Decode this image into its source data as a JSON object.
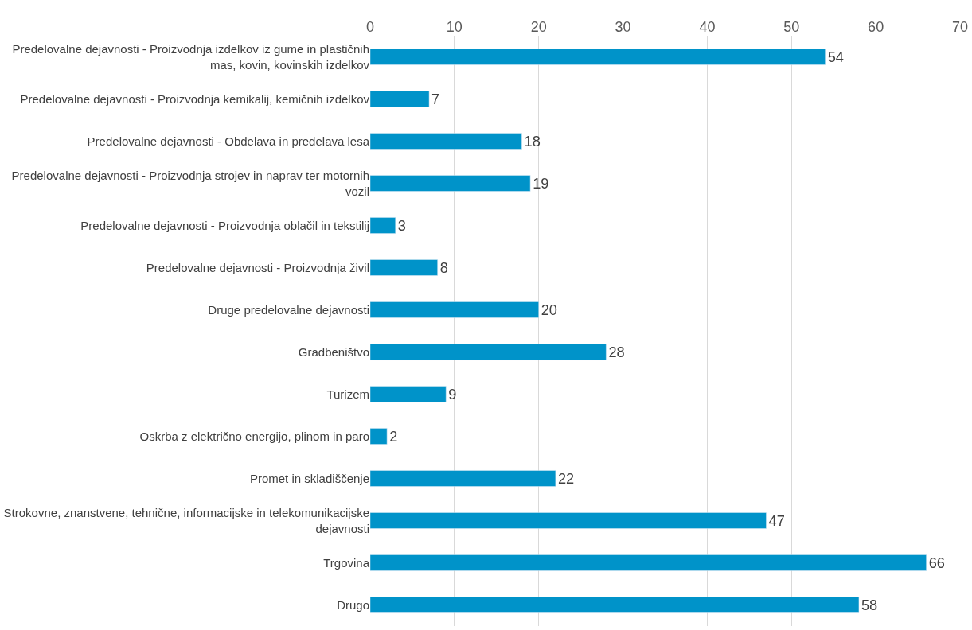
{
  "chart_data": {
    "type": "bar",
    "orientation": "horizontal",
    "categories": [
      "Predelovalne dejavnosti - Proizvodnja izdelkov iz gume in plastičnih mas, kovin, kovinskih izdelkov",
      "Predelovalne dejavnosti - Proizvodnja kemikalij, kemičnih izdelkov",
      "Predelovalne dejavnosti - Obdelava in predelava lesa",
      "Predelovalne dejavnosti - Proizvodnja strojev in naprav ter motornih vozil",
      "Predelovalne dejavnosti - Proizvodnja oblačil in tekstilij",
      "Predelovalne dejavnosti - Proizvodnja živil",
      "Druge predelovalne dejavnosti",
      "Gradbeništvo",
      "Turizem",
      "Oskrba z električno energijo, plinom in paro",
      "Promet in skladiščenje",
      "Strokovne, znanstvene, tehnične, informacijske in telekomunikacijske dejavnosti",
      "Trgovina",
      "Drugo"
    ],
    "values": [
      54,
      7,
      18,
      19,
      3,
      8,
      20,
      28,
      9,
      2,
      22,
      47,
      66,
      58
    ],
    "color": "#0093c9",
    "xlim": [
      0,
      70
    ],
    "xticks": [
      0,
      10,
      20,
      30,
      40,
      50,
      60,
      70
    ],
    "grid": "x",
    "data_labels": true
  }
}
